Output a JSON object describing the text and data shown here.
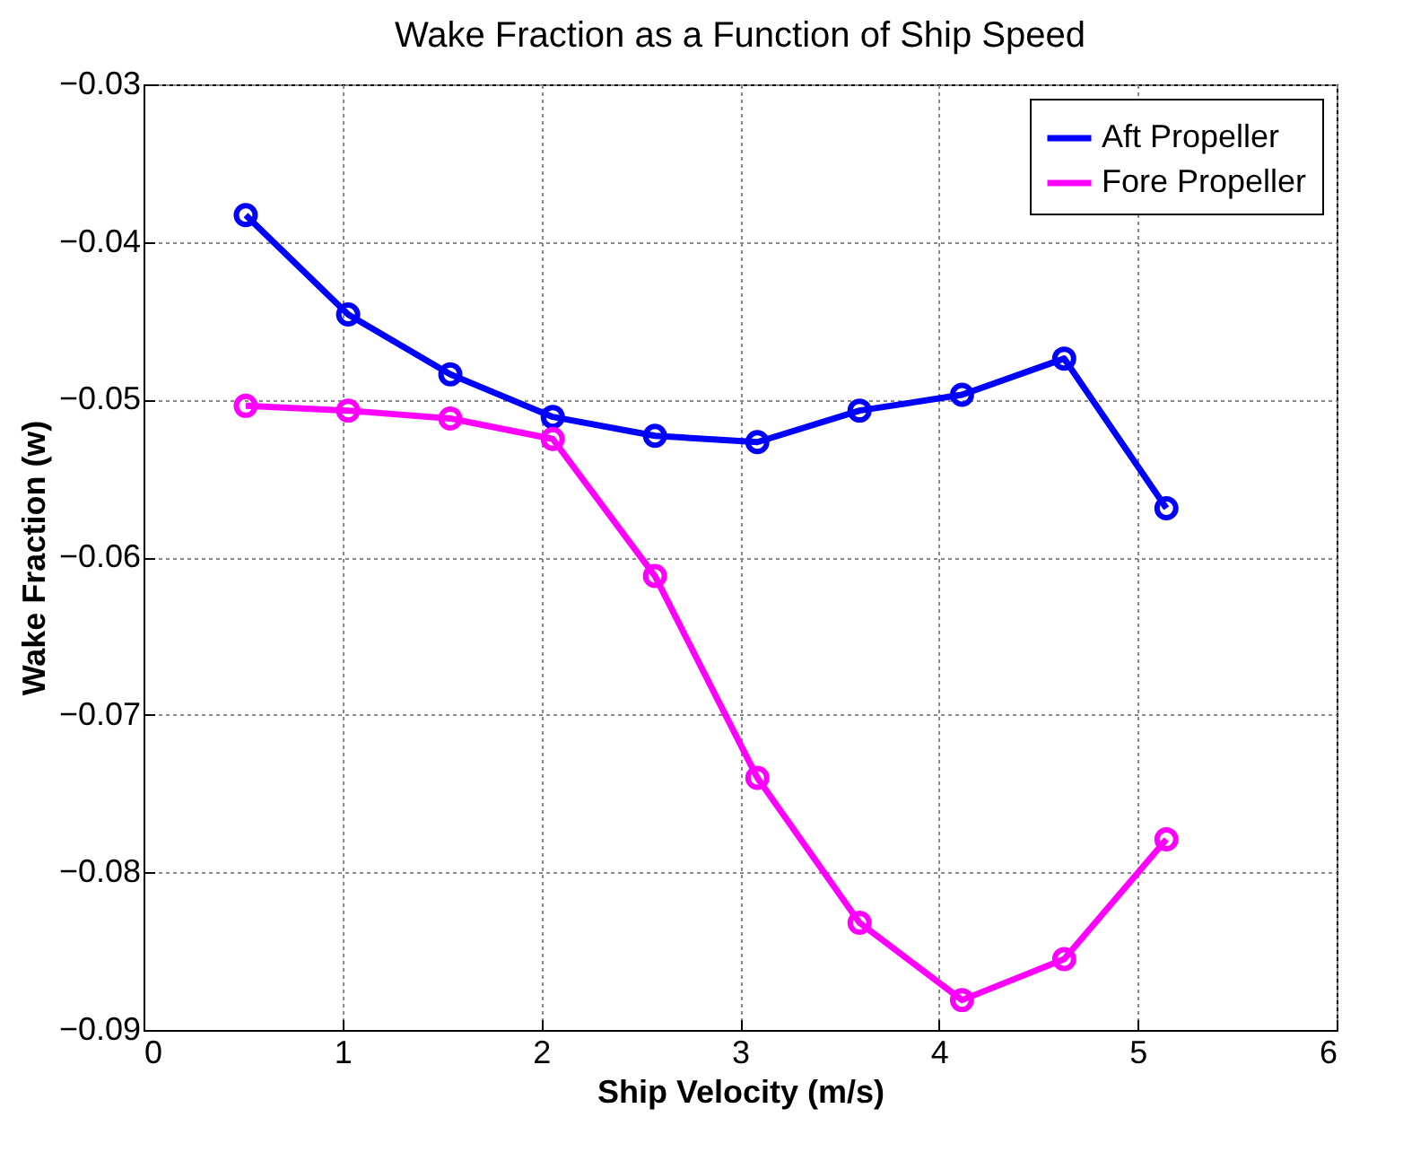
{
  "chart_data": {
    "type": "line",
    "title": "Wake Fraction as a Function of Ship Speed",
    "xlabel": "Ship Velocity (m/s)",
    "ylabel": "Wake Fraction (w)",
    "x": [
      0.514,
      1.029,
      1.543,
      2.058,
      2.572,
      3.087,
      3.601,
      4.116,
      4.63,
      5.144
    ],
    "series": [
      {
        "name": "Aft Propeller",
        "color": "#0000ff",
        "values": [
          -0.0383,
          -0.0446,
          -0.0484,
          -0.0511,
          -0.0523,
          -0.0527,
          -0.0507,
          -0.0497,
          -0.0474,
          -0.0569
        ]
      },
      {
        "name": "Fore Propeller",
        "color": "#ff00ff",
        "values": [
          -0.0504,
          -0.0507,
          -0.0512,
          -0.0525,
          -0.0612,
          -0.074,
          -0.0832,
          -0.0881,
          -0.0855,
          -0.0779
        ]
      }
    ],
    "xlim": [
      0,
      6
    ],
    "xticks": [
      0,
      1,
      2,
      3,
      4,
      5,
      6
    ],
    "ylim": [
      -0.09,
      -0.03
    ],
    "yticks": [
      -0.09,
      -0.08,
      -0.07,
      -0.06,
      -0.05,
      -0.04,
      -0.03
    ],
    "grid": true,
    "legend": "top right",
    "marker": "circle",
    "line_style": "solid"
  }
}
